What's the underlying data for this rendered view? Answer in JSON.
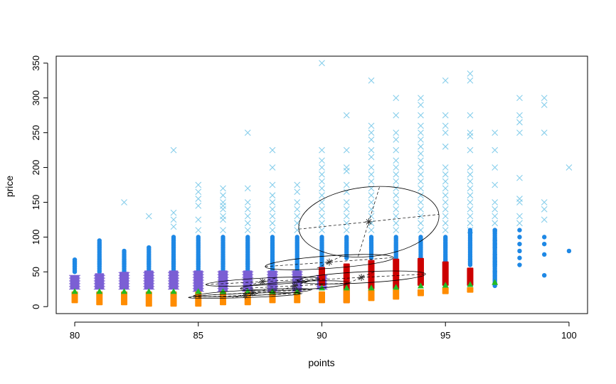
{
  "chart_data": {
    "type": "scatter",
    "title": "",
    "xlabel": "points",
    "ylabel": "price",
    "xlim": [
      79.25,
      100.75
    ],
    "ylim": [
      -10,
      360
    ],
    "x_ticks": [
      80,
      85,
      90,
      95,
      100
    ],
    "y_ticks": [
      0,
      50,
      100,
      150,
      200,
      250,
      300,
      350
    ],
    "x_tick_labels": [
      "80",
      "85",
      "90",
      "95",
      "100"
    ],
    "y_tick_labels": [
      "0",
      "50",
      "100",
      "150",
      "200",
      "250",
      "300",
      "350"
    ],
    "grid": false,
    "legend": "none",
    "colors": {
      "cross": "#87ceeb",
      "blue": "#1e88e5",
      "purple": "#7b5fd4",
      "red": "#cc0000",
      "orange": "#ff8c00",
      "green": "#22bb22",
      "ellipse": "#000000"
    },
    "series": [
      {
        "color": "#87ceeb",
        "marker": "x",
        "points": [
          [
            82,
            150
          ],
          [
            83,
            130
          ],
          [
            84,
            225
          ],
          [
            84,
            135
          ],
          [
            84,
            125
          ],
          [
            84,
            115
          ],
          [
            85,
            175
          ],
          [
            85,
            165
          ],
          [
            85,
            155
          ],
          [
            85,
            145
          ],
          [
            85,
            125
          ],
          [
            85,
            110
          ],
          [
            86,
            170
          ],
          [
            86,
            160
          ],
          [
            86,
            150
          ],
          [
            86,
            145
          ],
          [
            86,
            140
          ],
          [
            86,
            130
          ],
          [
            86,
            125
          ],
          [
            86,
            110
          ],
          [
            87,
            250
          ],
          [
            87,
            170
          ],
          [
            87,
            150
          ],
          [
            87,
            140
          ],
          [
            87,
            130
          ],
          [
            87,
            120
          ],
          [
            87,
            110
          ],
          [
            88,
            225
          ],
          [
            88,
            200
          ],
          [
            88,
            175
          ],
          [
            88,
            160
          ],
          [
            88,
            150
          ],
          [
            88,
            140
          ],
          [
            88,
            130
          ],
          [
            88,
            120
          ],
          [
            88,
            110
          ],
          [
            89,
            175
          ],
          [
            89,
            165
          ],
          [
            89,
            150
          ],
          [
            89,
            140
          ],
          [
            89,
            130
          ],
          [
            89,
            120
          ],
          [
            89,
            110
          ],
          [
            90,
            350
          ],
          [
            90,
            225
          ],
          [
            90,
            210
          ],
          [
            90,
            200
          ],
          [
            90,
            190
          ],
          [
            90,
            180
          ],
          [
            90,
            170
          ],
          [
            90,
            160
          ],
          [
            90,
            150
          ],
          [
            90,
            140
          ],
          [
            90,
            130
          ],
          [
            90,
            120
          ],
          [
            90,
            110
          ],
          [
            91,
            275
          ],
          [
            91,
            225
          ],
          [
            91,
            200
          ],
          [
            91,
            195
          ],
          [
            91,
            175
          ],
          [
            91,
            165
          ],
          [
            91,
            150
          ],
          [
            91,
            140
          ],
          [
            91,
            130
          ],
          [
            91,
            120
          ],
          [
            91,
            110
          ],
          [
            92,
            325
          ],
          [
            92,
            260
          ],
          [
            92,
            250
          ],
          [
            92,
            240
          ],
          [
            92,
            225
          ],
          [
            92,
            215
          ],
          [
            92,
            200
          ],
          [
            92,
            190
          ],
          [
            92,
            180
          ],
          [
            92,
            170
          ],
          [
            92,
            160
          ],
          [
            92,
            150
          ],
          [
            92,
            140
          ],
          [
            92,
            130
          ],
          [
            92,
            120
          ],
          [
            92,
            110
          ],
          [
            93,
            300
          ],
          [
            93,
            275
          ],
          [
            93,
            250
          ],
          [
            93,
            240
          ],
          [
            93,
            225
          ],
          [
            93,
            210
          ],
          [
            93,
            200
          ],
          [
            93,
            190
          ],
          [
            93,
            180
          ],
          [
            93,
            170
          ],
          [
            93,
            160
          ],
          [
            93,
            150
          ],
          [
            93,
            140
          ],
          [
            93,
            130
          ],
          [
            93,
            120
          ],
          [
            93,
            110
          ],
          [
            94,
            300
          ],
          [
            94,
            290
          ],
          [
            94,
            275
          ],
          [
            94,
            260
          ],
          [
            94,
            250
          ],
          [
            94,
            240
          ],
          [
            94,
            230
          ],
          [
            94,
            220
          ],
          [
            94,
            210
          ],
          [
            94,
            200
          ],
          [
            94,
            190
          ],
          [
            94,
            180
          ],
          [
            94,
            170
          ],
          [
            94,
            160
          ],
          [
            94,
            150
          ],
          [
            94,
            140
          ],
          [
            94,
            130
          ],
          [
            94,
            120
          ],
          [
            94,
            110
          ],
          [
            95,
            325
          ],
          [
            95,
            275
          ],
          [
            95,
            260
          ],
          [
            95,
            250
          ],
          [
            95,
            230
          ],
          [
            95,
            200
          ],
          [
            95,
            190
          ],
          [
            95,
            180
          ],
          [
            95,
            170
          ],
          [
            95,
            160
          ],
          [
            95,
            150
          ],
          [
            95,
            140
          ],
          [
            95,
            130
          ],
          [
            95,
            120
          ],
          [
            95,
            110
          ],
          [
            96,
            335
          ],
          [
            96,
            325
          ],
          [
            96,
            275
          ],
          [
            96,
            250
          ],
          [
            96,
            245
          ],
          [
            96,
            225
          ],
          [
            96,
            200
          ],
          [
            96,
            190
          ],
          [
            96,
            180
          ],
          [
            96,
            170
          ],
          [
            96,
            160
          ],
          [
            96,
            150
          ],
          [
            96,
            140
          ],
          [
            96,
            130
          ],
          [
            96,
            120
          ],
          [
            96,
            110
          ],
          [
            97,
            250
          ],
          [
            97,
            225
          ],
          [
            97,
            200
          ],
          [
            97,
            175
          ],
          [
            97,
            150
          ],
          [
            97,
            140
          ],
          [
            97,
            130
          ],
          [
            97,
            120
          ],
          [
            98,
            300
          ],
          [
            98,
            275
          ],
          [
            98,
            265
          ],
          [
            98,
            250
          ],
          [
            98,
            185
          ],
          [
            98,
            155
          ],
          [
            98,
            150
          ],
          [
            98,
            130
          ],
          [
            98,
            120
          ],
          [
            99,
            300
          ],
          [
            99,
            290
          ],
          [
            99,
            250
          ],
          [
            99,
            150
          ],
          [
            99,
            140
          ],
          [
            99,
            125
          ],
          [
            100,
            200
          ]
        ]
      },
      {
        "color": "#1e88e5",
        "marker": "dot",
        "columns": [
          [
            80,
            50,
            69
          ],
          [
            81,
            50,
            95
          ],
          [
            82,
            50,
            80
          ],
          [
            83,
            50,
            85
          ],
          [
            84,
            50,
            100
          ],
          [
            85,
            50,
            100
          ],
          [
            86,
            50,
            100
          ],
          [
            87,
            50,
            100
          ],
          [
            88,
            50,
            100
          ],
          [
            89,
            50,
            100
          ],
          [
            90,
            50,
            100
          ],
          [
            91,
            70,
            100
          ],
          [
            92,
            70,
            100
          ],
          [
            93,
            70,
            100
          ],
          [
            94,
            70,
            100
          ],
          [
            95,
            65,
            100
          ],
          [
            96,
            60,
            110
          ],
          [
            97,
            30,
            110
          ]
        ],
        "points": [
          [
            97,
            110
          ],
          [
            97,
            95
          ],
          [
            97,
            90
          ],
          [
            97,
            85
          ],
          [
            97,
            75
          ],
          [
            97,
            70
          ],
          [
            97,
            65
          ],
          [
            97,
            60
          ],
          [
            97,
            50
          ],
          [
            98,
            110
          ],
          [
            98,
            100
          ],
          [
            98,
            90
          ],
          [
            98,
            80
          ],
          [
            98,
            70
          ],
          [
            98,
            60
          ],
          [
            99,
            100
          ],
          [
            99,
            90
          ],
          [
            99,
            75
          ],
          [
            99,
            45
          ],
          [
            100,
            80
          ]
        ]
      },
      {
        "color": "#7b5fd4",
        "marker": "plus-band",
        "columns": [
          [
            80,
            25,
            45
          ],
          [
            81,
            25,
            48
          ],
          [
            82,
            25,
            50
          ],
          [
            83,
            25,
            52
          ],
          [
            84,
            25,
            52
          ],
          [
            85,
            22,
            52
          ],
          [
            86,
            22,
            52
          ],
          [
            87,
            22,
            52
          ],
          [
            88,
            22,
            52
          ],
          [
            89,
            22,
            52
          ],
          [
            90,
            25,
            45
          ]
        ]
      },
      {
        "color": "#cc0000",
        "marker": "band",
        "columns": [
          [
            90,
            30,
            57
          ],
          [
            91,
            5,
            62
          ],
          [
            92,
            25,
            67
          ],
          [
            93,
            25,
            69
          ],
          [
            94,
            30,
            70
          ],
          [
            95,
            30,
            65
          ],
          [
            96,
            30,
            56
          ]
        ]
      },
      {
        "color": "#ff8c00",
        "marker": "band",
        "columns": [
          [
            80,
            5,
            22
          ],
          [
            81,
            2,
            22
          ],
          [
            82,
            2,
            22
          ],
          [
            83,
            0,
            22
          ],
          [
            84,
            0,
            22
          ],
          [
            85,
            0,
            22
          ],
          [
            86,
            2,
            22
          ],
          [
            87,
            2,
            22
          ],
          [
            88,
            5,
            22
          ],
          [
            89,
            5,
            22
          ],
          [
            90,
            5,
            22
          ],
          [
            91,
            5,
            25
          ],
          [
            92,
            8,
            25
          ],
          [
            93,
            10,
            25
          ],
          [
            94,
            15,
            25
          ],
          [
            95,
            18,
            28
          ],
          [
            96,
            20,
            28
          ]
        ]
      },
      {
        "color": "#22bb22",
        "marker": "triangle",
        "points": [
          [
            80,
            22
          ],
          [
            81,
            22
          ],
          [
            82,
            22
          ],
          [
            83,
            22
          ],
          [
            84,
            22
          ],
          [
            85,
            22
          ],
          [
            86,
            22
          ],
          [
            87,
            22
          ],
          [
            88,
            22
          ],
          [
            89,
            22
          ],
          [
            90,
            27
          ],
          [
            91,
            27
          ],
          [
            92,
            27
          ],
          [
            93,
            28
          ],
          [
            94,
            30
          ],
          [
            95,
            31
          ],
          [
            96,
            32
          ],
          [
            97,
            35
          ]
        ]
      }
    ],
    "ellipses": [
      {
        "center": [
          91.9,
          122
        ],
        "rx": 2.85,
        "ry": 50,
        "rotate_deg": -6,
        "center_marker": "*"
      },
      {
        "center": [
          90.3,
          64
        ],
        "rx": 2.6,
        "ry": 9,
        "rotate_deg": -4,
        "center_marker": "*"
      },
      {
        "center": [
          91.6,
          42
        ],
        "rx": 2.6,
        "ry": 8,
        "rotate_deg": -3,
        "center_marker": "*"
      },
      {
        "center": [
          88.9,
          30
        ],
        "rx": 2.2,
        "ry": 6,
        "rotate_deg": -3,
        "center_marker": "*"
      },
      {
        "center": [
          87.6,
          36
        ],
        "rx": 2.3,
        "ry": 5,
        "rotate_deg": -3,
        "center_marker": "*"
      },
      {
        "center": [
          87.2,
          20
        ],
        "rx": 2.4,
        "ry": 4,
        "rotate_deg": -3,
        "center_marker": "*"
      },
      {
        "center": [
          86.9,
          16
        ],
        "rx": 2.3,
        "ry": 3,
        "rotate_deg": -2,
        "center_marker": "*"
      }
    ]
  }
}
